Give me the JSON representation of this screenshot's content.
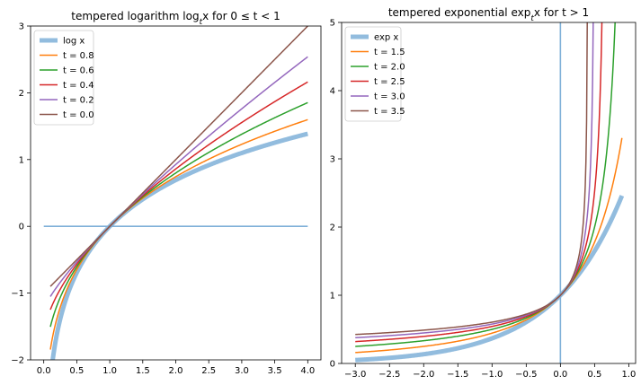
{
  "colors": {
    "base": "#7fb0d8",
    "series": [
      "#ff7f0e",
      "#2ca02c",
      "#d62728",
      "#9467bd",
      "#8c564b"
    ]
  },
  "chart_data": [
    {
      "type": "line",
      "title": "tempered logarithm log_t x for 0 ≤ t < 1",
      "title_parts": [
        "tempered logarithm log",
        "t",
        "x for 0 ≤ t < 1"
      ],
      "xlim": [
        -0.2,
        4.2
      ],
      "ylim": [
        -2,
        3
      ],
      "xticks": [
        0.0,
        0.5,
        1.0,
        1.5,
        2.0,
        2.5,
        3.0,
        3.5,
        4.0
      ],
      "xtick_labels": [
        "0.0",
        "0.5",
        "1.0",
        "1.5",
        "2.0",
        "2.5",
        "3.0",
        "3.5",
        "4.0"
      ],
      "yticks": [
        -2,
        -1,
        0,
        1,
        2,
        3
      ],
      "ytick_labels": [
        "−2",
        "−1",
        "0",
        "1",
        "2",
        "3"
      ],
      "x_range": [
        0.1,
        4.0
      ],
      "legend_position": "upper-left",
      "reference_line": {
        "type": "horizontal",
        "value": 0,
        "from": 0.0,
        "to": 4.0
      },
      "series": [
        {
          "name": "log x",
          "t": 1.0,
          "kind": "base"
        },
        {
          "name": "t = 0.8",
          "t": 0.8
        },
        {
          "name": "t = 0.6",
          "t": 0.6
        },
        {
          "name": "t = 0.4",
          "t": 0.4
        },
        {
          "name": "t = 0.2",
          "t": 0.2
        },
        {
          "name": "t = 0.0",
          "t": 0.0
        }
      ]
    },
    {
      "type": "line",
      "title": "tempered exponential exp_t x for t > 1",
      "title_parts": [
        "tempered exponential exp",
        "t",
        "x for t > 1"
      ],
      "xlim": [
        -3.2,
        1.1
      ],
      "ylim": [
        0,
        5
      ],
      "xticks": [
        -3.0,
        -2.5,
        -2.0,
        -1.5,
        -1.0,
        -0.5,
        0.0,
        0.5,
        1.0
      ],
      "xtick_labels": [
        "−3.0",
        "−2.5",
        "−2.0",
        "−1.5",
        "−1.0",
        "−0.5",
        "0.0",
        "0.5",
        "1.0"
      ],
      "yticks": [
        0,
        1,
        2,
        3,
        4,
        5
      ],
      "ytick_labels": [
        "0",
        "1",
        "2",
        "3",
        "4",
        "5"
      ],
      "x_range": [
        -3.0,
        0.9
      ],
      "legend_position": "upper-left",
      "reference_line": {
        "type": "vertical",
        "value": 0
      },
      "series": [
        {
          "name": "exp x",
          "t": 1.0,
          "kind": "base"
        },
        {
          "name": "t = 1.5",
          "t": 1.5
        },
        {
          "name": "t = 2.0",
          "t": 2.0
        },
        {
          "name": "t = 2.5",
          "t": 2.5
        },
        {
          "name": "t = 3.0",
          "t": 3.0
        },
        {
          "name": "t = 3.5",
          "t": 3.5
        }
      ]
    }
  ]
}
